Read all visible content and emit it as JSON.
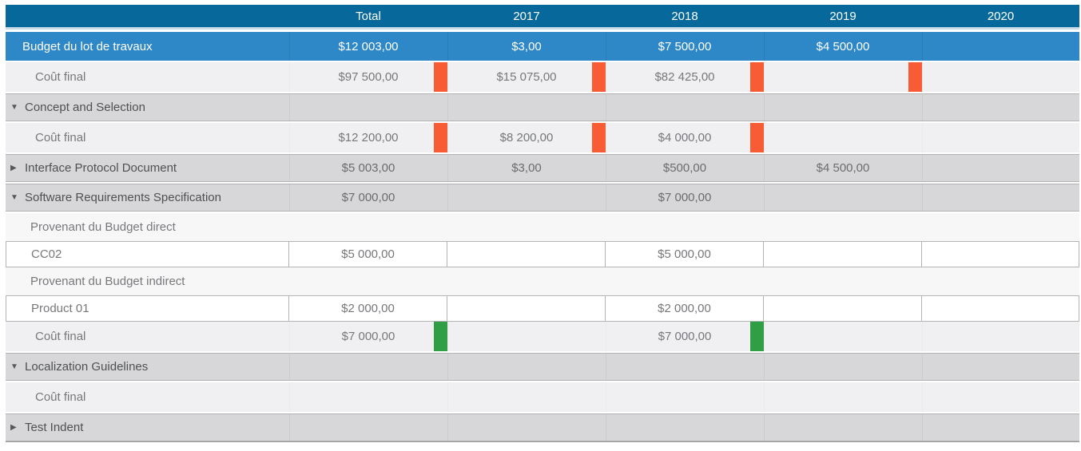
{
  "columns": [
    "",
    "Total",
    "2017",
    "2018",
    "2019",
    "2020"
  ],
  "icons": {
    "expanded": "▼",
    "collapsed": "▶"
  },
  "colors": {
    "header_bg": "#06689b",
    "budget_bg": "#2e87c6",
    "row_light": "#f0f0f2",
    "group_bg": "#d7d7d9",
    "section_bg": "#f7f7f8",
    "overrun": "#f85c34",
    "ok": "#2f9e44",
    "text_value": "#77787b",
    "text_group": "#4f5052"
  },
  "rows": [
    {
      "type": "budget",
      "label": "Budget du lot de travaux",
      "values": [
        "$12 003,00",
        "$3,00",
        "$7 500,00",
        "$4 500,00",
        ""
      ]
    },
    {
      "type": "cost",
      "label": "Coût final",
      "values": [
        "$97 500,00",
        "$15 075,00",
        "$82 425,00",
        "",
        ""
      ],
      "bars": [
        "orange",
        "orange",
        "orange",
        "orange",
        null
      ]
    },
    {
      "type": "group",
      "label": "Concept and Selection",
      "expanded": true,
      "values": [
        "",
        "",
        "",
        "",
        ""
      ]
    },
    {
      "type": "cost",
      "label": "Coût final",
      "values": [
        "$12 200,00",
        "$8 200,00",
        "$4 000,00",
        "",
        ""
      ],
      "bars": [
        "orange",
        "orange",
        "orange",
        null,
        null
      ]
    },
    {
      "type": "group",
      "label": "Interface Protocol Document",
      "expanded": false,
      "values": [
        "$5 003,00",
        "$3,00",
        "$500,00",
        "$4 500,00",
        ""
      ]
    },
    {
      "type": "group",
      "label": "Software Requirements Specification",
      "expanded": true,
      "values": [
        "$7 000,00",
        "",
        "$7 000,00",
        "",
        ""
      ]
    },
    {
      "type": "section",
      "label": "Provenant du Budget direct"
    },
    {
      "type": "input",
      "label": "CC02",
      "values": [
        "$5 000,00",
        "",
        "$5 000,00",
        "",
        ""
      ]
    },
    {
      "type": "section",
      "label": "Provenant du Budget indirect"
    },
    {
      "type": "input",
      "label": "Product 01",
      "values": [
        "$2 000,00",
        "",
        "$2 000,00",
        "",
        ""
      ]
    },
    {
      "type": "cost",
      "label": "Coût final",
      "values": [
        "$7 000,00",
        "",
        "$7 000,00",
        "",
        ""
      ],
      "bars": [
        "green",
        null,
        "green",
        null,
        null
      ]
    },
    {
      "type": "group",
      "label": "Localization Guidelines",
      "expanded": true,
      "values": [
        "",
        "",
        "",
        "",
        ""
      ]
    },
    {
      "type": "cost",
      "label": "Coût final",
      "values": [
        "",
        "",
        "",
        "",
        ""
      ]
    },
    {
      "type": "group",
      "label": "Test Indent",
      "expanded": false,
      "values": [
        "",
        "",
        "",
        "",
        ""
      ]
    }
  ]
}
